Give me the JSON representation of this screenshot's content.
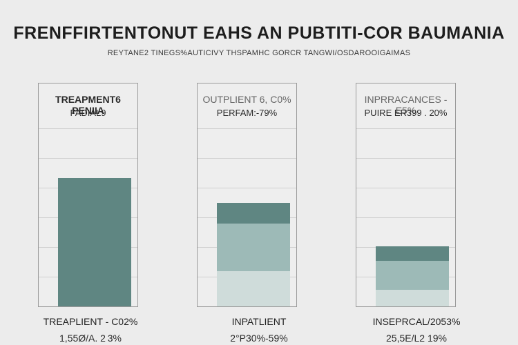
{
  "chart_data": {
    "type": "bar",
    "title": "FRENFFIRTENTONUT EAHS AN PUBTITI-COR BAUMANIA",
    "subtitle": "REYTANE2 TINEGS%AUTICIVY THSPAMHC GORCR TANGWI/OSDAROOIGAIMAS",
    "ylim": [
      0,
      100
    ],
    "grid": true,
    "panels": [
      {
        "heading": "TREAPMENT6 PENIIA",
        "subheading": "FADIAL9",
        "footer_label": "TREAPLIENT - C02%",
        "footer_value": "1,55Ø/A. 2 3%",
        "segments": [
          {
            "value": 62,
            "color": "#5f8682"
          }
        ]
      },
      {
        "heading": "OUTPLIENT 6, C0%",
        "subheading": "PERFAM:-79%",
        "footer_label": "INPATLIENT",
        "footer_value": "2°P30%-59%",
        "segments": [
          {
            "value": 17,
            "color": "#cfdcda"
          },
          {
            "value": 23,
            "color": "#9dbab7"
          },
          {
            "value": 10,
            "color": "#5f8682"
          }
        ]
      },
      {
        "heading": "INPRRACANCES - E5%",
        "subheading": "PUIRE ER399 . 20%",
        "footer_label": "INSEPRCAL/2053%",
        "footer_value": "25,5E/L2 19%",
        "segments": [
          {
            "value": 8,
            "color": "#cfdcda"
          },
          {
            "value": 14,
            "color": "#9dbab7"
          },
          {
            "value": 7,
            "color": "#5f8682"
          }
        ]
      }
    ]
  }
}
